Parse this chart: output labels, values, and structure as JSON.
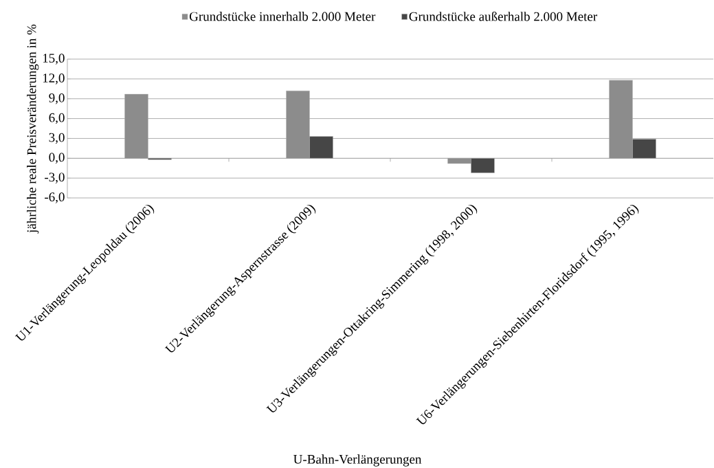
{
  "chart_data": {
    "type": "bar",
    "xlabel": "U-Bahn-Verlängerungen",
    "ylabel": "jährliche reale  Preisveränderungen in %",
    "categories": [
      "U1-Verlängerung-Leopoldau (2006)",
      "U2-Verlängerung-Aspernstrasse (2009)",
      "U3-Verlängerungen-Ottakring-Simmering (1998, 2000)",
      "U6-Verlängerungen-Siebenhirten-Floridsdorf (1995, 1996)"
    ],
    "series": [
      {
        "name": "Grundstücke innerhalb 2.000 Meter",
        "color": "#8c8c8c",
        "values": [
          9.7,
          10.2,
          -0.8,
          11.8
        ]
      },
      {
        "name": "Grundstücke außerhalb 2.000 Meter",
        "color": "#464646",
        "values": [
          -0.2,
          3.3,
          -2.2,
          2.9
        ]
      }
    ],
    "ylim": [
      -6,
      15
    ],
    "yticks": [
      {
        "value": -6,
        "label": "-6,0"
      },
      {
        "value": -3,
        "label": "-3,0"
      },
      {
        "value": 0,
        "label": "0,0"
      },
      {
        "value": 3,
        "label": "3,0"
      },
      {
        "value": 6,
        "label": "6,0"
      },
      {
        "value": 9,
        "label": "9,0"
      },
      {
        "value": 12,
        "label": "12,0"
      },
      {
        "value": 15,
        "label": "15,0"
      }
    ],
    "grid": "y",
    "legend": "top"
  }
}
